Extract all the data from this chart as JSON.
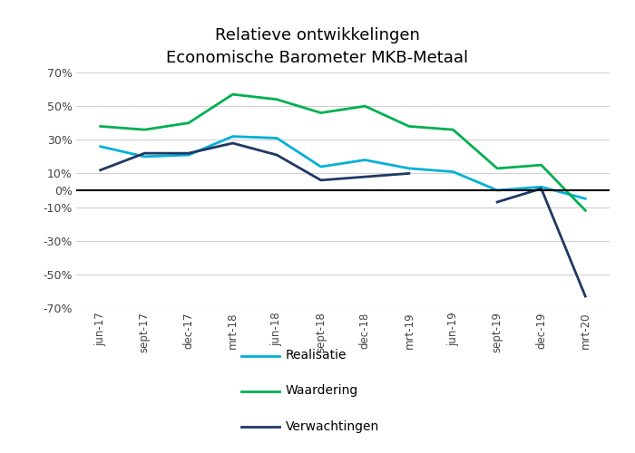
{
  "title": "Relatieve ontwikkelingen\nEconomische Barometer MKB-Metaal",
  "x_labels": [
    "jun-17",
    "sept-17",
    "dec-17",
    "mrt-18",
    "jun-18",
    "sept-18",
    "dec-18",
    "mrt-19",
    "jun-19",
    "sept-19",
    "dec-19",
    "mrt-20"
  ],
  "realisatie": [
    26,
    20,
    21,
    32,
    31,
    14,
    18,
    13,
    11,
    0,
    2,
    -5
  ],
  "waardering": [
    38,
    36,
    40,
    57,
    54,
    46,
    50,
    38,
    36,
    13,
    15,
    -12
  ],
  "verwachtingen": [
    12,
    22,
    22,
    28,
    21,
    6,
    8,
    10,
    null,
    -7,
    1,
    -63
  ],
  "realisatie_color": "#00b0d8",
  "waardering_color": "#00b050",
  "verwachtingen_color": "#1f3864",
  "ylim": [
    -70,
    70
  ],
  "yticks": [
    -70,
    -50,
    -30,
    -10,
    0,
    10,
    30,
    50,
    70
  ],
  "ytick_labels": [
    "-70%",
    "-50%",
    "-30%",
    "-10%",
    "0%",
    "10%",
    "30%",
    "50%",
    "70%"
  ],
  "background_color": "#ffffff",
  "grid_color": "#d0d0d0",
  "legend_labels": [
    "Realisatie",
    "Waardering",
    "Verwachtingen"
  ]
}
